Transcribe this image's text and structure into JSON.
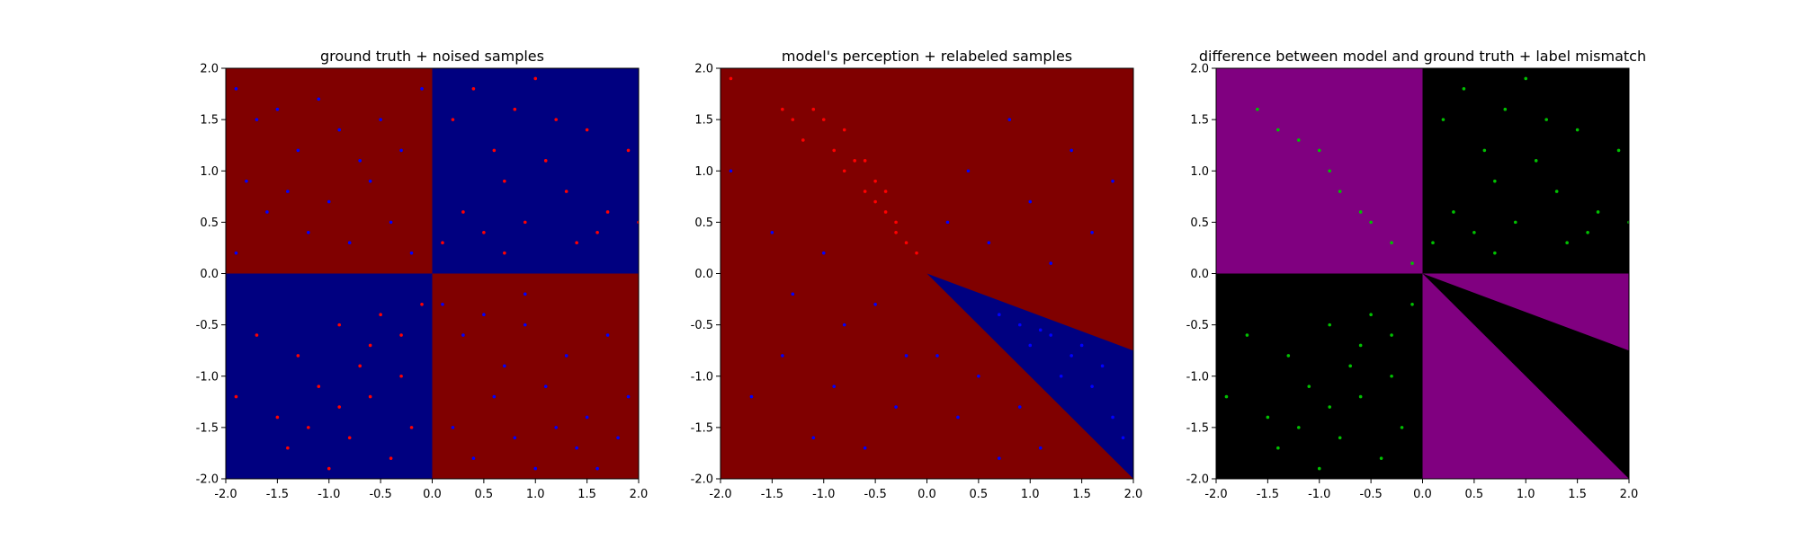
{
  "chart_data": [
    {
      "type": "scatter",
      "title": "ground truth + noised samples",
      "xlim": [
        -2,
        2
      ],
      "ylim": [
        -2,
        2
      ],
      "xticks": [
        "-2.0",
        "-1.5",
        "-1.0",
        "-0.5",
        "0.0",
        "0.5",
        "1.0",
        "1.5",
        "2.0"
      ],
      "yticks": [
        "-2.0",
        "-1.5",
        "-1.0",
        "-0.5",
        "0.0",
        "0.5",
        "1.0",
        "1.5",
        "2.0"
      ],
      "background_regions": [
        {
          "x": [
            -2,
            0
          ],
          "y": [
            0,
            2
          ],
          "color": "#800000"
        },
        {
          "x": [
            0,
            2
          ],
          "y": [
            0,
            2
          ],
          "color": "#000080"
        },
        {
          "x": [
            -2,
            0
          ],
          "y": [
            -2,
            0
          ],
          "color": "#000080"
        },
        {
          "x": [
            0,
            2
          ],
          "y": [
            -2,
            0
          ],
          "color": "#800000"
        }
      ],
      "series": [
        {
          "color": "#0000ff",
          "points": [
            [
              -1.9,
              1.8
            ],
            [
              -1.7,
              1.5
            ],
            [
              -1.5,
              1.6
            ],
            [
              -1.3,
              1.2
            ],
            [
              -1.1,
              1.7
            ],
            [
              -0.9,
              1.4
            ],
            [
              -0.7,
              1.1
            ],
            [
              -0.5,
              1.5
            ],
            [
              -0.3,
              1.2
            ],
            [
              -0.1,
              1.8
            ],
            [
              -1.8,
              0.9
            ],
            [
              -1.6,
              0.6
            ],
            [
              -1.4,
              0.8
            ],
            [
              -1.2,
              0.4
            ],
            [
              -1.0,
              0.7
            ],
            [
              -0.8,
              0.3
            ],
            [
              -0.6,
              0.9
            ],
            [
              -0.4,
              0.5
            ],
            [
              -0.2,
              0.2
            ],
            [
              -1.9,
              0.2
            ],
            [
              0.1,
              -0.3
            ],
            [
              0.3,
              -0.6
            ],
            [
              0.5,
              -0.4
            ],
            [
              0.7,
              -0.9
            ],
            [
              0.9,
              -0.5
            ],
            [
              1.1,
              -1.1
            ],
            [
              1.3,
              -0.8
            ],
            [
              1.5,
              -1.4
            ],
            [
              1.7,
              -0.6
            ],
            [
              1.9,
              -1.2
            ],
            [
              0.2,
              -1.5
            ],
            [
              0.4,
              -1.8
            ],
            [
              0.6,
              -1.2
            ],
            [
              0.8,
              -1.6
            ],
            [
              1.0,
              -1.9
            ],
            [
              1.2,
              -1.5
            ],
            [
              1.4,
              -1.7
            ],
            [
              1.6,
              -1.9
            ],
            [
              1.8,
              -1.6
            ],
            [
              0.9,
              -0.2
            ]
          ]
        },
        {
          "color": "#ff0000",
          "points": [
            [
              0.1,
              0.3
            ],
            [
              0.3,
              0.6
            ],
            [
              0.5,
              0.4
            ],
            [
              0.7,
              0.9
            ],
            [
              0.9,
              0.5
            ],
            [
              1.1,
              1.1
            ],
            [
              1.3,
              0.8
            ],
            [
              1.5,
              1.4
            ],
            [
              1.7,
              0.6
            ],
            [
              1.9,
              1.2
            ],
            [
              0.2,
              1.5
            ],
            [
              0.4,
              1.8
            ],
            [
              0.6,
              1.2
            ],
            [
              0.8,
              1.6
            ],
            [
              1.0,
              1.9
            ],
            [
              1.2,
              1.5
            ],
            [
              1.4,
              0.3
            ],
            [
              0.7,
              0.2
            ],
            [
              1.6,
              0.4
            ],
            [
              2.0,
              0.5
            ],
            [
              -0.1,
              -0.3
            ],
            [
              -0.3,
              -0.6
            ],
            [
              -0.5,
              -0.4
            ],
            [
              -0.7,
              -0.9
            ],
            [
              -0.9,
              -0.5
            ],
            [
              -1.1,
              -1.1
            ],
            [
              -1.3,
              -0.8
            ],
            [
              -1.5,
              -1.4
            ],
            [
              -1.7,
              -0.6
            ],
            [
              -1.9,
              -1.2
            ],
            [
              -0.2,
              -1.5
            ],
            [
              -0.4,
              -1.8
            ],
            [
              -0.6,
              -1.2
            ],
            [
              -0.8,
              -1.6
            ],
            [
              -1.0,
              -1.9
            ],
            [
              -1.2,
              -1.5
            ],
            [
              -1.4,
              -1.7
            ],
            [
              -0.3,
              -1.0
            ],
            [
              -0.6,
              -0.7
            ],
            [
              -0.9,
              -1.3
            ]
          ]
        }
      ]
    },
    {
      "type": "scatter",
      "title": "model's perception + relabeled samples",
      "xlim": [
        -2,
        2
      ],
      "ylim": [
        -2,
        2
      ],
      "xticks": [
        "-2.0",
        "-1.5",
        "-1.0",
        "-0.5",
        "0.0",
        "0.5",
        "1.0",
        "1.5",
        "2.0"
      ],
      "yticks": [
        "-2.0",
        "-1.5",
        "-1.0",
        "-0.5",
        "0.0",
        "0.5",
        "1.0",
        "1.5",
        "2.0"
      ],
      "background_color": "#800000",
      "wedge": {
        "points": [
          [
            0,
            0
          ],
          [
            2,
            -0.75
          ],
          [
            2,
            -2
          ]
        ],
        "color": "#000080"
      },
      "series": [
        {
          "color": "#ff0000",
          "points": [
            [
              -1.9,
              1.9
            ],
            [
              -1.4,
              1.6
            ],
            [
              -1.2,
              1.3
            ],
            [
              -1.0,
              1.5
            ],
            [
              -0.9,
              1.2
            ],
            [
              -0.8,
              1.0
            ],
            [
              -0.7,
              1.1
            ],
            [
              -0.6,
              0.8
            ],
            [
              -0.5,
              0.9
            ],
            [
              -0.4,
              0.6
            ],
            [
              -0.3,
              0.4
            ],
            [
              -0.2,
              0.3
            ],
            [
              -0.8,
              1.4
            ],
            [
              -1.1,
              1.6
            ],
            [
              -0.6,
              1.1
            ],
            [
              -0.4,
              0.8
            ],
            [
              -1.3,
              1.5
            ],
            [
              -0.5,
              0.7
            ],
            [
              -0.3,
              0.5
            ],
            [
              -0.1,
              0.2
            ]
          ]
        },
        {
          "color": "#0000ff",
          "points": [
            [
              -1.9,
              1.0
            ],
            [
              -1.5,
              0.4
            ],
            [
              -1.3,
              -0.2
            ],
            [
              -1.0,
              0.2
            ],
            [
              -0.8,
              -0.5
            ],
            [
              -0.5,
              -0.3
            ],
            [
              -0.2,
              -0.8
            ],
            [
              0.2,
              0.5
            ],
            [
              0.4,
              1.0
            ],
            [
              0.6,
              0.3
            ],
            [
              0.8,
              1.5
            ],
            [
              1.0,
              0.7
            ],
            [
              1.2,
              0.1
            ],
            [
              1.4,
              1.2
            ],
            [
              1.6,
              0.4
            ],
            [
              1.8,
              0.9
            ],
            [
              -1.7,
              -1.2
            ],
            [
              -1.4,
              -0.8
            ],
            [
              -1.1,
              -1.6
            ],
            [
              -0.9,
              -1.1
            ],
            [
              -0.6,
              -1.7
            ],
            [
              -0.3,
              -1.3
            ],
            [
              0.1,
              -0.8
            ],
            [
              0.3,
              -1.4
            ],
            [
              0.5,
              -1.0
            ],
            [
              0.7,
              -1.8
            ],
            [
              0.9,
              -1.3
            ],
            [
              1.1,
              -1.7
            ],
            [
              0.9,
              -0.5
            ],
            [
              1.2,
              -0.6
            ],
            [
              1.4,
              -0.8
            ],
            [
              1.6,
              -1.1
            ],
            [
              1.8,
              -1.4
            ],
            [
              1.5,
              -0.7
            ],
            [
              1.7,
              -0.9
            ],
            [
              1.9,
              -1.6
            ],
            [
              0.7,
              -0.4
            ],
            [
              1.0,
              -0.7
            ],
            [
              1.3,
              -1.0
            ],
            [
              1.1,
              -0.55
            ]
          ]
        }
      ]
    },
    {
      "type": "scatter",
      "title": "difference between model and ground truth + label mismatch",
      "xlim": [
        -2,
        2
      ],
      "ylim": [
        -2,
        2
      ],
      "xticks": [
        "-2.0",
        "-1.5",
        "-1.0",
        "-0.5",
        "0.0",
        "0.5",
        "1.0",
        "1.5",
        "2.0"
      ],
      "yticks": [
        "-2.0",
        "-1.5",
        "-1.0",
        "-0.5",
        "0.0",
        "0.5",
        "1.0",
        "1.5",
        "2.0"
      ],
      "background_regions": [
        {
          "x": [
            -2,
            0
          ],
          "y": [
            0,
            2
          ],
          "color": "#800080"
        },
        {
          "x": [
            0,
            2
          ],
          "y": [
            0,
            2
          ],
          "color": "#000000"
        },
        {
          "x": [
            -2,
            0
          ],
          "y": [
            -2,
            0
          ],
          "color": "#000000"
        },
        {
          "x": [
            0,
            2
          ],
          "y": [
            -2,
            0
          ],
          "color": "#800080"
        }
      ],
      "wedge": {
        "points": [
          [
            0,
            0
          ],
          [
            2,
            -0.75
          ],
          [
            2,
            -2
          ]
        ],
        "color": "#000000"
      },
      "series": [
        {
          "color": "#00c000",
          "points": [
            [
              -1.6,
              1.6
            ],
            [
              -1.4,
              1.4
            ],
            [
              -1.2,
              1.3
            ],
            [
              -1.0,
              1.2
            ],
            [
              -0.9,
              1.0
            ],
            [
              -0.8,
              0.8
            ],
            [
              -0.6,
              0.6
            ],
            [
              -0.5,
              0.5
            ],
            [
              -0.3,
              0.3
            ],
            [
              -0.1,
              0.1
            ],
            [
              0.1,
              0.3
            ],
            [
              0.3,
              0.6
            ],
            [
              0.5,
              0.4
            ],
            [
              0.7,
              0.9
            ],
            [
              0.9,
              0.5
            ],
            [
              1.1,
              1.1
            ],
            [
              1.3,
              0.8
            ],
            [
              1.5,
              1.4
            ],
            [
              1.7,
              0.6
            ],
            [
              1.9,
              1.2
            ],
            [
              0.2,
              1.5
            ],
            [
              0.4,
              1.8
            ],
            [
              0.6,
              1.2
            ],
            [
              0.8,
              1.6
            ],
            [
              1.0,
              1.9
            ],
            [
              1.2,
              1.5
            ],
            [
              1.4,
              0.3
            ],
            [
              0.7,
              0.2
            ],
            [
              1.6,
              0.4
            ],
            [
              2.0,
              0.5
            ],
            [
              -0.1,
              -0.3
            ],
            [
              -0.3,
              -0.6
            ],
            [
              -0.5,
              -0.4
            ],
            [
              -0.7,
              -0.9
            ],
            [
              -0.9,
              -0.5
            ],
            [
              -1.1,
              -1.1
            ],
            [
              -1.3,
              -0.8
            ],
            [
              -1.5,
              -1.4
            ],
            [
              -1.7,
              -0.6
            ],
            [
              -1.9,
              -1.2
            ],
            [
              -0.2,
              -1.5
            ],
            [
              -0.4,
              -1.8
            ],
            [
              -0.6,
              -1.2
            ],
            [
              -0.8,
              -1.6
            ],
            [
              -1.0,
              -1.9
            ],
            [
              -1.2,
              -1.5
            ],
            [
              -1.4,
              -1.7
            ],
            [
              -0.3,
              -1.0
            ],
            [
              -0.6,
              -0.7
            ],
            [
              -0.9,
              -1.3
            ]
          ]
        }
      ]
    }
  ]
}
